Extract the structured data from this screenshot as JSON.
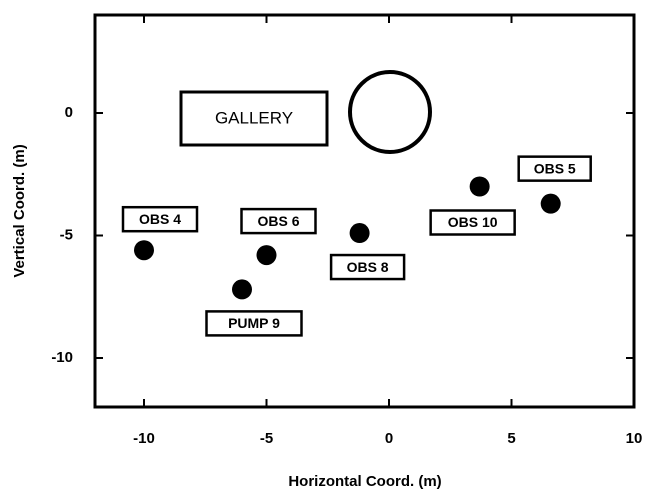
{
  "chart_data": {
    "type": "scatter",
    "xlabel": "Horizontal Coord. (m)",
    "ylabel": "Vertical Coord. (m)",
    "xlim": [
      -12,
      10
    ],
    "ylim": [
      -12,
      4
    ],
    "xticks": [
      -10,
      -5,
      0,
      5,
      10
    ],
    "yticks": [
      -10,
      -5,
      0
    ],
    "labels": [
      "OBS 4",
      "OBS 6",
      "PUMP 9",
      "OBS 8",
      "OBS 10",
      "OBS 5"
    ],
    "x": [
      -10,
      -5,
      -6,
      -1.2,
      3.7,
      6.6
    ],
    "values": [
      -5.6,
      -5.8,
      -7.2,
      -4.9,
      -3.0,
      -3.7
    ],
    "color": "#000000",
    "annotations": [
      "GALLERY"
    ]
  }
}
